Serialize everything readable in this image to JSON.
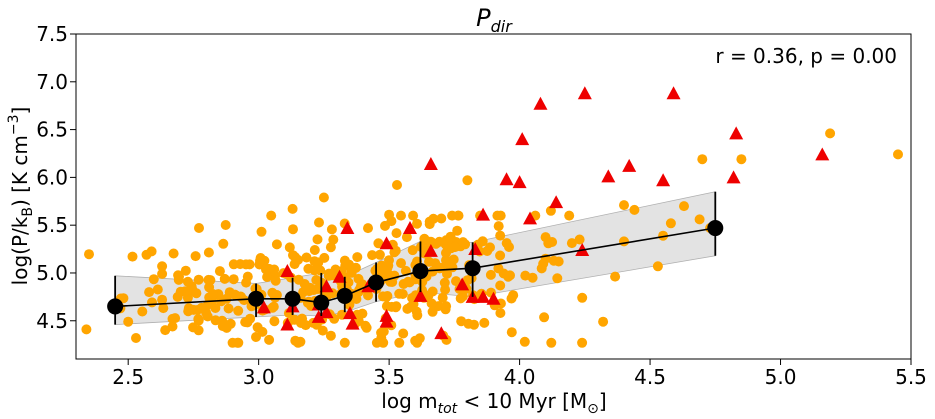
{
  "chart_data": {
    "type": "scatter",
    "title": "P",
    "title_sub": "dir",
    "xlabel": "log m",
    "xlabel_sub": "tot",
    "xlabel_rest": " < 10 Myr [M",
    "xlabel_sun": "⊙",
    "xlabel_end": "]",
    "ylabel": "log(P/k",
    "ylabel_sub": "B",
    "ylabel_rest": ") [K cm",
    "ylabel_sup": "−3",
    "ylabel_end": "]",
    "annotation": "r = 0.36, p = 0.00",
    "xlim": [
      2.3,
      5.5
    ],
    "ylim": [
      4.1,
      7.5
    ],
    "xticks": [
      2.5,
      3.0,
      3.5,
      4.0,
      4.5,
      5.0,
      5.5
    ],
    "xtick_labels": [
      "2.5",
      "3.0",
      "3.5",
      "4.0",
      "4.5",
      "5.0",
      "5.5"
    ],
    "yticks": [
      4.5,
      5.0,
      5.5,
      6.0,
      6.5,
      7.0,
      7.5
    ],
    "ytick_labels": [
      "4.5",
      "5.0",
      "5.5",
      "6.0",
      "6.5",
      "7.0",
      "7.5"
    ],
    "grid": false,
    "colors": {
      "orange": "#FFA500",
      "red": "#EE0000",
      "median": "#000000",
      "band": "#d9d9d9"
    },
    "triangles": [
      [
        4.25,
        6.88
      ],
      [
        4.59,
        6.88
      ],
      [
        4.08,
        6.77
      ],
      [
        4.01,
        6.4
      ],
      [
        4.83,
        6.46
      ],
      [
        5.16,
        6.24
      ],
      [
        3.66,
        6.14
      ],
      [
        4.42,
        6.12
      ],
      [
        4.34,
        6.01
      ],
      [
        4.55,
        5.97
      ],
      [
        4.82,
        6.0
      ],
      [
        3.95,
        5.98
      ],
      [
        4.0,
        5.95
      ],
      [
        4.14,
        5.74
      ],
      [
        3.86,
        5.61
      ],
      [
        4.04,
        5.57
      ],
      [
        3.34,
        5.47
      ],
      [
        3.58,
        5.47
      ],
      [
        3.49,
        5.31
      ],
      [
        3.66,
        5.23
      ],
      [
        3.83,
        5.25
      ],
      [
        4.24,
        5.24
      ],
      [
        3.11,
        5.02
      ],
      [
        3.31,
        4.96
      ],
      [
        3.26,
        4.86
      ],
      [
        3.42,
        4.86
      ],
      [
        3.78,
        4.88
      ],
      [
        3.82,
        4.75
      ],
      [
        3.86,
        4.75
      ],
      [
        3.9,
        4.73
      ],
      [
        3.62,
        4.76
      ],
      [
        3.23,
        4.67
      ],
      [
        3.02,
        4.64
      ],
      [
        3.13,
        4.65
      ],
      [
        3.26,
        4.59
      ],
      [
        3.35,
        4.58
      ],
      [
        3.23,
        4.54
      ],
      [
        3.49,
        4.55
      ],
      [
        3.49,
        4.49
      ],
      [
        3.36,
        4.47
      ],
      [
        3.11,
        4.46
      ],
      [
        3.7,
        4.37
      ]
    ],
    "circle_seeds": [
      [
        2.34,
        4.41
      ],
      [
        2.47,
        4.63
      ],
      [
        2.5,
        4.49
      ],
      [
        2.53,
        4.32
      ],
      [
        2.58,
        4.8
      ],
      [
        2.63,
        4.72
      ],
      [
        2.67,
        4.52
      ],
      [
        2.73,
        4.6
      ],
      [
        2.81,
        4.85
      ],
      [
        2.9,
        4.27
      ],
      [
        2.98,
        4.66
      ],
      [
        3.13,
        5.67
      ],
      [
        3.25,
        5.79
      ],
      [
        3.53,
        5.92
      ],
      [
        3.8,
        5.97
      ],
      [
        4.63,
        5.7
      ],
      [
        4.58,
        5.52
      ],
      [
        4.7,
        6.19
      ],
      [
        4.85,
        6.19
      ],
      [
        5.19,
        6.46
      ],
      [
        5.45,
        6.24
      ],
      [
        4.53,
        5.07
      ],
      [
        4.73,
        5.47
      ],
      [
        4.23,
        5.35
      ],
      [
        4.24,
        4.74
      ],
      [
        4.32,
        4.49
      ],
      [
        4.4,
        5.33
      ],
      [
        4.55,
        5.39
      ],
      [
        4.69,
        5.56
      ],
      [
        4.11,
        5.31
      ],
      [
        4.15,
        5.12
      ],
      [
        4.05,
        4.95
      ],
      [
        4.02,
        4.28
      ],
      [
        3.97,
        4.38
      ],
      [
        3.89,
        4.98
      ],
      [
        3.72,
        4.3
      ],
      [
        3.6,
        4.29
      ],
      [
        3.47,
        4.32
      ],
      [
        3.33,
        4.27
      ],
      [
        3.16,
        4.28
      ],
      [
        3.04,
        4.3
      ],
      [
        2.99,
        4.33
      ],
      [
        4.12,
        5.65
      ],
      [
        4.06,
        5.6
      ],
      [
        3.7,
        5.57
      ],
      [
        3.92,
        5.49
      ],
      [
        4.44,
        5.66
      ],
      [
        4.4,
        5.71
      ],
      [
        3.5,
        5.61
      ],
      [
        2.63,
        5.07
      ],
      [
        2.57,
        5.19
      ],
      [
        2.63,
        4.99
      ],
      [
        2.67,
        4.44
      ],
      [
        2.77,
        4.4
      ],
      [
        2.86,
        4.5
      ]
    ],
    "circle_clusters": [
      {
        "x": 3.25,
        "y": 4.85,
        "sx": 0.32,
        "sy": 0.3,
        "n": 210
      },
      {
        "x": 3.7,
        "y": 5.05,
        "sx": 0.24,
        "sy": 0.32,
        "n": 130
      },
      {
        "x": 2.85,
        "y": 4.75,
        "sx": 0.18,
        "sy": 0.22,
        "n": 45
      }
    ],
    "median_points": [
      {
        "x": 2.45,
        "y": 4.65,
        "err": [
          4.46,
          4.97
        ]
      },
      {
        "x": 2.99,
        "y": 4.73,
        "err": [
          4.54,
          4.89
        ]
      },
      {
        "x": 3.13,
        "y": 4.73,
        "err": [
          4.56,
          4.95
        ]
      },
      {
        "x": 3.24,
        "y": 4.69,
        "err": [
          4.55,
          5.0
        ]
      },
      {
        "x": 3.33,
        "y": 4.76,
        "err": [
          4.59,
          4.96
        ]
      },
      {
        "x": 3.45,
        "y": 4.9,
        "err": [
          4.7,
          5.11
        ]
      },
      {
        "x": 3.62,
        "y": 5.02,
        "err": [
          4.8,
          5.33
        ]
      },
      {
        "x": 3.82,
        "y": 5.05,
        "err": [
          4.75,
          5.32
        ]
      },
      {
        "x": 4.75,
        "y": 5.47,
        "err": [
          5.18,
          5.85
        ]
      }
    ],
    "band": {
      "x": [
        2.45,
        2.99,
        3.13,
        3.24,
        3.33,
        3.45,
        3.62,
        3.82,
        4.75
      ],
      "lower": [
        4.46,
        4.54,
        4.56,
        4.55,
        4.59,
        4.7,
        4.8,
        4.75,
        5.18
      ],
      "upper": [
        4.97,
        4.89,
        4.95,
        5.0,
        4.96,
        5.11,
        5.33,
        5.32,
        5.85
      ]
    }
  }
}
